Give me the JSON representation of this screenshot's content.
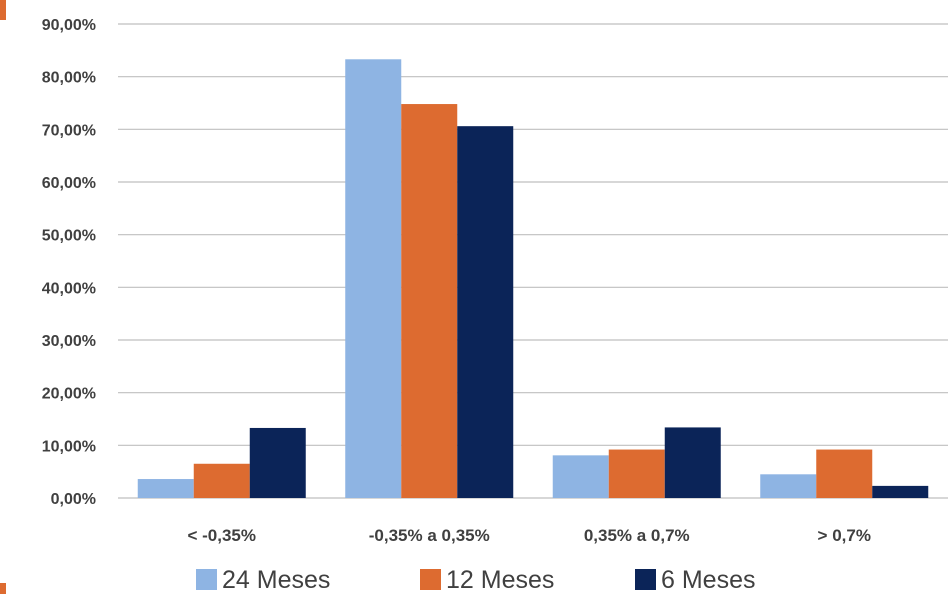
{
  "chart_data": {
    "type": "bar",
    "categories": [
      "< -0,35%",
      "-0,35% a 0,35%",
      "0,35% a 0,7%",
      "> 0,7%"
    ],
    "series": [
      {
        "name": "24 Meses",
        "color": "#8eb4e3",
        "values": [
          3.6,
          83.3,
          8.1,
          4.5
        ]
      },
      {
        "name": "12 Meses",
        "color": "#dd6b30",
        "values": [
          6.5,
          74.8,
          9.2,
          9.2
        ]
      },
      {
        "name": "6 Meses",
        "color": "#0b2458",
        "values": [
          13.3,
          70.6,
          13.4,
          2.3
        ]
      }
    ],
    "yticks": [
      "0,00%",
      "10,00%",
      "20,00%",
      "30,00%",
      "40,00%",
      "50,00%",
      "60,00%",
      "70,00%",
      "80,00%",
      "90,00%"
    ],
    "ylim": [
      0,
      90
    ],
    "title": "",
    "xlabel": "",
    "ylabel": "",
    "grid": true,
    "legend_position": "bottom"
  }
}
